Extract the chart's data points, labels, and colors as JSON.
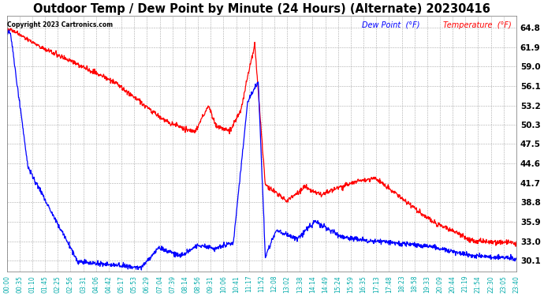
{
  "title": "Outdoor Temp / Dew Point by Minute (24 Hours) (Alternate) 20230416",
  "title_fontsize": 10.5,
  "copyright_text": "Copyright 2023 Cartronics.com",
  "legend_dew": "Dew Point  (°F)",
  "legend_temp": "Temperature  (°F)",
  "dew_color": "#0000ff",
  "temp_color": "#ff0000",
  "background_color": "#ffffff",
  "plot_bg_color": "#ffffff",
  "grid_color": "#aaaaaa",
  "title_color": "#000000",
  "copyright_color": "#000000",
  "ytick_color": "#000000",
  "xtick_color": "#00aaaa",
  "yticks": [
    30.1,
    33.0,
    35.9,
    38.8,
    41.7,
    44.6,
    47.5,
    50.3,
    53.2,
    56.1,
    59.0,
    61.9,
    64.8
  ],
  "ylim_min": 28.5,
  "ylim_max": 66.5,
  "x_labels": [
    "00:00",
    "00:35",
    "01:10",
    "01:45",
    "02:25",
    "02:56",
    "03:31",
    "04:06",
    "04:42",
    "05:17",
    "05:53",
    "06:29",
    "07:04",
    "07:39",
    "08:14",
    "08:56",
    "09:31",
    "10:06",
    "10:41",
    "11:17",
    "11:52",
    "12:08",
    "13:02",
    "13:38",
    "14:14",
    "14:49",
    "15:24",
    "15:59",
    "16:35",
    "17:13",
    "17:48",
    "18:23",
    "18:58",
    "19:33",
    "20:09",
    "20:44",
    "21:19",
    "21:54",
    "22:30",
    "23:05",
    "23:40"
  ],
  "line_width": 0.9
}
